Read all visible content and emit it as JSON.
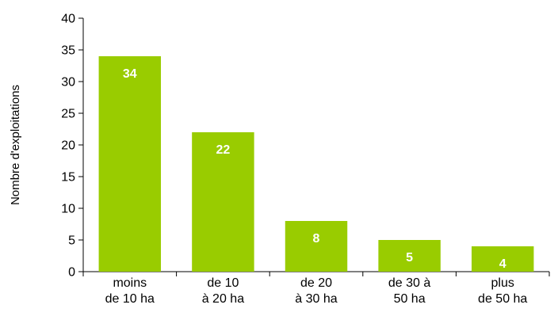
{
  "chart_data": {
    "type": "bar",
    "categories": [
      [
        "moins",
        "de 10 ha"
      ],
      [
        "de 10",
        "à 20 ha"
      ],
      [
        "de 20",
        "à 30 ha"
      ],
      [
        "de 30 à",
        "50 ha"
      ],
      [
        "plus",
        "de 50 ha"
      ]
    ],
    "values": [
      34,
      22,
      8,
      5,
      4
    ],
    "data_labels": [
      "34",
      "22",
      "8",
      "5",
      "4"
    ],
    "title": "",
    "xlabel": "",
    "ylabel": "Nombre d'exploitations",
    "ylim": [
      0,
      40
    ],
    "yticks": [
      0,
      5,
      10,
      15,
      20,
      25,
      30,
      35,
      40
    ],
    "grid": false,
    "legend": "none",
    "colors": {
      "bar": "#99cc00",
      "axis": "#000000",
      "data_label": "#ffffff"
    }
  }
}
